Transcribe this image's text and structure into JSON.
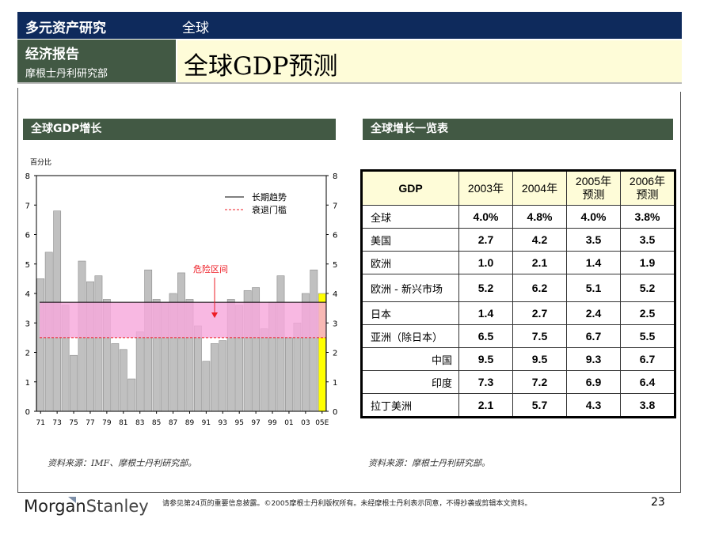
{
  "header": {
    "research_title": "多元资产研究",
    "region": "全球",
    "report_type": "经济报告",
    "dept": "摩根士丹利研究部",
    "page_title": "全球GDP预测"
  },
  "chart_section": {
    "title": "全球GDP增长"
  },
  "table_section": {
    "title": "全球增长一览表"
  },
  "chart_data": {
    "type": "bar",
    "title": "全球GDP增长",
    "ylabel": "百分比",
    "ylim": [
      0,
      8
    ],
    "yticks": [
      "0",
      "1",
      "2",
      "3",
      "4",
      "5",
      "6",
      "7",
      "8"
    ],
    "years": [
      "1971",
      "1972",
      "1973",
      "1974",
      "1975",
      "1976",
      "1977",
      "1978",
      "1979",
      "1980",
      "1981",
      "1982",
      "1983",
      "1984",
      "1985",
      "1986",
      "1987",
      "1988",
      "1989",
      "1990",
      "1991",
      "1992",
      "1993",
      "1994",
      "1995",
      "1996",
      "1997",
      "1998",
      "1999",
      "2000",
      "2001",
      "2002",
      "2003",
      "2004",
      "2005E"
    ],
    "values": [
      4.5,
      5.4,
      6.8,
      3.6,
      1.9,
      5.1,
      4.4,
      4.6,
      3.8,
      2.3,
      2.1,
      1.1,
      2.7,
      4.8,
      3.8,
      3.7,
      4.0,
      4.7,
      3.8,
      2.9,
      1.7,
      2.3,
      2.4,
      3.8,
      3.6,
      4.1,
      4.2,
      2.8,
      3.7,
      4.6,
      2.5,
      3.0,
      4.0,
      4.8,
      4.0
    ],
    "forecast_index": 34,
    "x_tick_labels": [
      "71",
      "73",
      "75",
      "77",
      "79",
      "81",
      "83",
      "85",
      "87",
      "89",
      "91",
      "93",
      "95",
      "97",
      "99",
      "01",
      "03",
      "05E"
    ],
    "long_term_trend": 3.7,
    "recession_threshold": 2.5,
    "danger_zone": [
      2.5,
      3.7
    ],
    "legend": [
      {
        "label": "长期趋势",
        "style": "solid"
      },
      {
        "label": "衰退门槛",
        "style": "dashed"
      }
    ],
    "annotation": "危险区间",
    "colors": {
      "bar": "#c0c0c0",
      "forecast_bar": "#ffff00",
      "zone": "#f7a8dc",
      "threshold": "#ee1c25"
    }
  },
  "table": {
    "headers": [
      "GDP",
      "2003年",
      "2004年",
      "2005年\n预测",
      "2006年\n预测"
    ],
    "header_lines": [
      [
        "GDP"
      ],
      [
        "2003年"
      ],
      [
        "2004年"
      ],
      [
        "2005年",
        "预测"
      ],
      [
        "2006年",
        "预测"
      ]
    ],
    "rows": [
      {
        "label": "全球",
        "values": [
          "4.0%",
          "4.8%",
          "4.0%",
          "3.8%"
        ],
        "sub": false
      },
      {
        "label": "美国",
        "values": [
          "2.7",
          "4.2",
          "3.5",
          "3.5"
        ],
        "sub": false
      },
      {
        "label": "欧洲",
        "values": [
          "1.0",
          "2.1",
          "1.4",
          "1.9"
        ],
        "sub": false
      },
      {
        "label": "欧洲 - 新兴市场",
        "values": [
          "5.2",
          "6.2",
          "5.1",
          "5.2"
        ],
        "sub": false,
        "tall": true
      },
      {
        "label": "日本",
        "values": [
          "1.4",
          "2.7",
          "2.4",
          "2.5"
        ],
        "sub": false
      },
      {
        "label": "亚洲（除日本）",
        "values": [
          "6.5",
          "7.5",
          "6.7",
          "5.5"
        ],
        "sub": false
      },
      {
        "label": "中国",
        "values": [
          "9.5",
          "9.5",
          "9.3",
          "6.7"
        ],
        "sub": true
      },
      {
        "label": "印度",
        "values": [
          "7.3",
          "7.2",
          "6.9",
          "6.4"
        ],
        "sub": true
      },
      {
        "label": "拉丁美洲",
        "values": [
          "2.1",
          "5.7",
          "4.3",
          "3.8"
        ],
        "sub": false
      }
    ]
  },
  "sources": {
    "chart": "资料来源：IMF、摩根士丹利研究部。",
    "table": "资料来源：摩根士丹利研究部。"
  },
  "footer": {
    "logo_a": "Morgan",
    "logo_b": "Stanley",
    "disclaimer": "请参见第24页的重要信息披露。©2005摩根士丹利版权所有。未经摩根士丹利表示同意，不得抄袭或剪辑本文资料。",
    "page_number": "23"
  }
}
